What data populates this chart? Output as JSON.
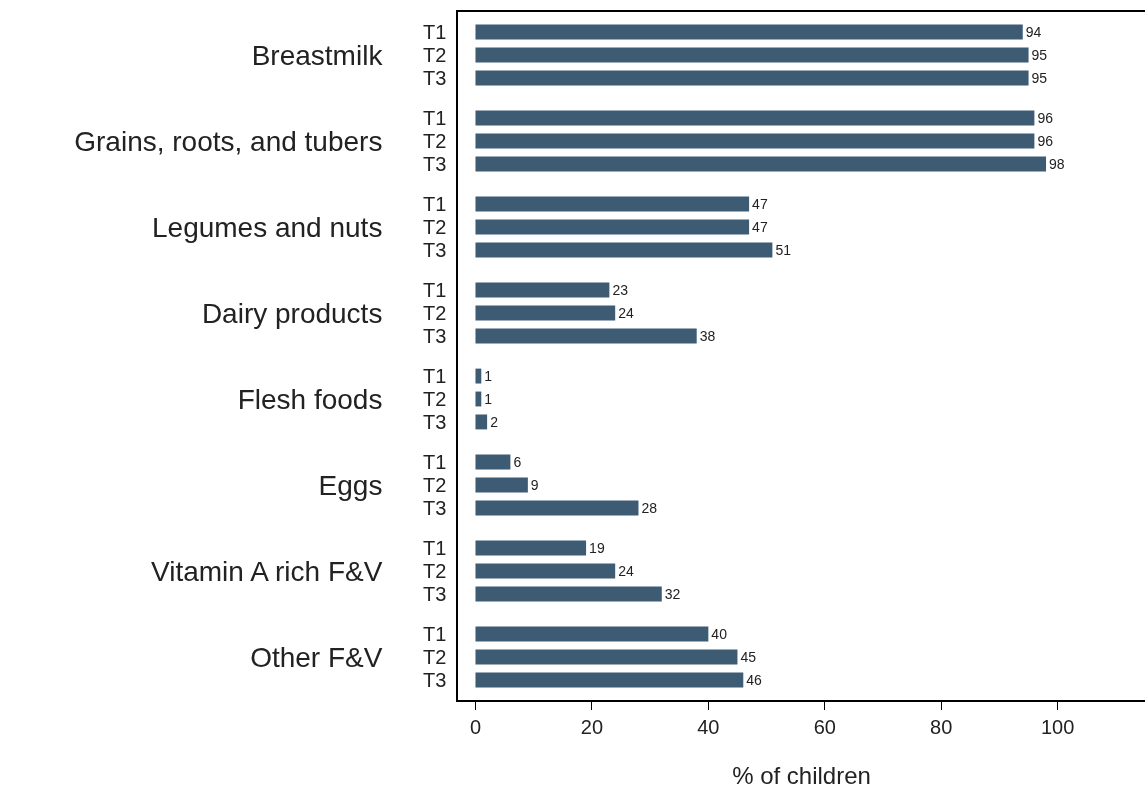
{
  "chart_data": {
    "type": "bar",
    "orientation": "horizontal",
    "xlabel": "% of children",
    "categories": [
      "Breastmilk",
      "Grains, roots, and tubers",
      "Legumes and nuts",
      "Dairy products",
      "Flesh foods",
      "Eggs",
      "Vitamin A rich F&V",
      "Other F&V"
    ],
    "series": [
      {
        "name": "T1",
        "color": "#3e5b74",
        "values": [
          94,
          96,
          47,
          23,
          1,
          6,
          19,
          40
        ]
      },
      {
        "name": "T2",
        "color": "#3e5b74",
        "values": [
          95,
          96,
          47,
          24,
          1,
          9,
          24,
          45
        ]
      },
      {
        "name": "T3",
        "color": "#3e5b74",
        "values": [
          95,
          98,
          51,
          38,
          2,
          28,
          32,
          46
        ]
      }
    ],
    "xlim": [
      -3,
      115
    ],
    "xticks": [
      0,
      20,
      40,
      60,
      80,
      100
    ],
    "grid": false,
    "legend": false,
    "data_labels": true
  }
}
